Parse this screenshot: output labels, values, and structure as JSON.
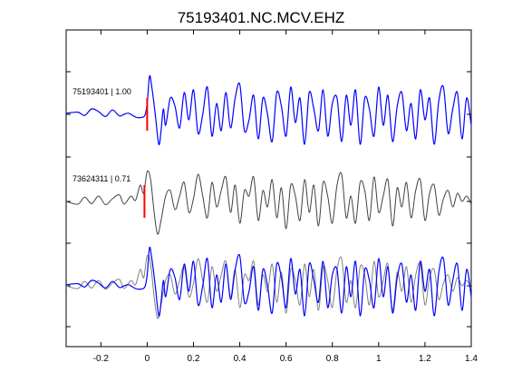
{
  "chart_data": {
    "type": "line",
    "title": "75193401.NC.MCV.EHZ",
    "xlabel": "",
    "ylabel": "",
    "xlim": [
      -0.35,
      1.4
    ],
    "x_ticks": [
      -0.2,
      0,
      0.2,
      0.4,
      0.6,
      0.8,
      1,
      1.2,
      1.4
    ],
    "x_tick_labels": [
      "-0.2",
      "0",
      "0.2",
      "0.4",
      "0.6",
      "0.8",
      "1",
      "1.2",
      "1.4"
    ],
    "grid": false,
    "pick_time": 0,
    "colors": {
      "primary": "#0000ff",
      "secondary": "#404040",
      "overlay_secondary": "#808080",
      "pick": "#ff0000"
    },
    "traces": [
      {
        "label": "75193401 | 1.00",
        "panel": 1,
        "color": "#0000ff",
        "has_pick": true
      },
      {
        "label": "73624311 | 0.71",
        "panel": 2,
        "color": "#404040",
        "has_pick": true
      },
      {
        "label": "",
        "panel": 3,
        "color": "#808080",
        "has_pick": false
      },
      {
        "label": "",
        "panel": 3,
        "color": "#0000ff",
        "has_pick": false
      }
    ],
    "waveform_1": {
      "t": [
        -0.35,
        -0.3,
        -0.27,
        -0.24,
        -0.21,
        -0.18,
        -0.15,
        -0.12,
        -0.1,
        -0.08,
        -0.05,
        -0.03,
        -0.01,
        0.0,
        0.01,
        0.02,
        0.035,
        0.05,
        0.06,
        0.07,
        0.08,
        0.1,
        0.12,
        0.14,
        0.16,
        0.18,
        0.2,
        0.22,
        0.24,
        0.26,
        0.28,
        0.3,
        0.32,
        0.34,
        0.36,
        0.38,
        0.4,
        0.42,
        0.44,
        0.46,
        0.48,
        0.5,
        0.52,
        0.54,
        0.56,
        0.58,
        0.6,
        0.62,
        0.64,
        0.66,
        0.68,
        0.7,
        0.72,
        0.74,
        0.76,
        0.78,
        0.8,
        0.82,
        0.84,
        0.86,
        0.88,
        0.9,
        0.92,
        0.94,
        0.96,
        0.98,
        1.0,
        1.02,
        1.04,
        1.06,
        1.08,
        1.1,
        1.12,
        1.14,
        1.16,
        1.18,
        1.2,
        1.22,
        1.24,
        1.26,
        1.28,
        1.3,
        1.32,
        1.34,
        1.36,
        1.38,
        1.4
      ],
      "v": [
        0.02,
        0.04,
        -0.02,
        0.1,
        0.05,
        -0.04,
        0.08,
        -0.03,
        0.0,
        0.02,
        -0.05,
        -0.06,
        -0.02,
        0.2,
        0.7,
        0.5,
        0.0,
        -0.55,
        -0.3,
        0.1,
        -0.2,
        0.3,
        0.15,
        -0.25,
        0.4,
        -0.1,
        0.45,
        -0.35,
        0.0,
        0.5,
        -0.4,
        0.2,
        -0.3,
        0.4,
        -0.25,
        0.3,
        0.55,
        -0.3,
        -0.1,
        0.35,
        -0.45,
        0.3,
        0.0,
        -0.5,
        0.4,
        0.15,
        -0.4,
        0.5,
        -0.15,
        0.3,
        -0.55,
        0.4,
        0.1,
        -0.3,
        0.45,
        -0.4,
        0.2,
        0.3,
        -0.5,
        0.35,
        -0.2,
        0.45,
        -0.55,
        0.3,
        0.1,
        -0.4,
        0.5,
        -0.2,
        0.35,
        -0.5,
        0.15,
        0.4,
        -0.3,
        0.2,
        -0.45,
        0.45,
        -0.1,
        0.3,
        -0.55,
        0.25,
        0.5,
        -0.35,
        0.1,
        0.4,
        -0.45,
        0.3,
        -0.2
      ]
    },
    "waveform_2": {
      "t": [
        -0.35,
        -0.3,
        -0.27,
        -0.24,
        -0.21,
        -0.18,
        -0.15,
        -0.12,
        -0.1,
        -0.07,
        -0.05,
        -0.03,
        -0.015,
        0.0,
        0.015,
        0.03,
        0.045,
        0.06,
        0.08,
        0.1,
        0.12,
        0.14,
        0.16,
        0.18,
        0.2,
        0.22,
        0.24,
        0.26,
        0.28,
        0.3,
        0.32,
        0.34,
        0.36,
        0.38,
        0.4,
        0.42,
        0.44,
        0.46,
        0.48,
        0.5,
        0.52,
        0.54,
        0.56,
        0.58,
        0.6,
        0.62,
        0.64,
        0.66,
        0.68,
        0.7,
        0.72,
        0.74,
        0.76,
        0.78,
        0.8,
        0.82,
        0.84,
        0.86,
        0.88,
        0.9,
        0.92,
        0.94,
        0.96,
        0.98,
        1.0,
        1.02,
        1.04,
        1.06,
        1.08,
        1.1,
        1.12,
        1.14,
        1.16,
        1.18,
        1.2,
        1.22,
        1.24,
        1.26,
        1.28,
        1.3,
        1.32,
        1.34,
        1.36,
        1.38,
        1.4
      ],
      "v": [
        0.0,
        -0.05,
        0.08,
        -0.04,
        0.1,
        -0.06,
        0.05,
        0.12,
        -0.05,
        0.1,
        0.02,
        0.3,
        0.15,
        0.55,
        0.4,
        -0.2,
        -0.6,
        -0.35,
        0.1,
        0.2,
        -0.15,
        0.1,
        0.35,
        -0.2,
        0.05,
        0.5,
        0.1,
        -0.3,
        0.35,
        -0.1,
        0.2,
        0.45,
        -0.2,
        0.3,
        -0.4,
        0.2,
        0.1,
        0.45,
        -0.35,
        0.2,
        -0.1,
        0.4,
        -0.3,
        0.25,
        -0.5,
        0.3,
        0.1,
        -0.35,
        0.4,
        -0.2,
        0.3,
        -0.45,
        0.35,
        0.1,
        -0.4,
        0.3,
        0.5,
        -0.3,
        0.1,
        -0.4,
        0.35,
        0.2,
        -0.35,
        0.45,
        -0.2,
        0.1,
        0.4,
        -0.45,
        0.25,
        -0.1,
        0.35,
        -0.3,
        0.2,
        0.4,
        -0.35,
        0.15,
        0.3,
        -0.25,
        0.05,
        0.2,
        -0.1,
        0.15,
        0.0,
        0.1,
        -0.05,
        0.05,
        0.02
      ]
    }
  }
}
